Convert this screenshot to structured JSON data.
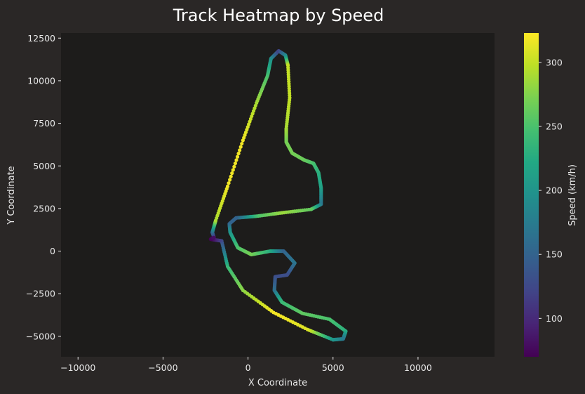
{
  "chart_data": {
    "type": "scatter",
    "title": "Track Heatmap by Speed",
    "xlabel": "X Coordinate",
    "ylabel": "Y Coordinate",
    "xlim": [
      -11000,
      14500
    ],
    "ylim": [
      -6200,
      12800
    ],
    "x_ticks": [
      -10000,
      -5000,
      0,
      5000,
      10000
    ],
    "x_tick_labels": [
      "−10000",
      "−5000",
      "0",
      "5000",
      "10000"
    ],
    "y_ticks": [
      -5000,
      -2500,
      0,
      2500,
      5000,
      7500,
      10000,
      12500
    ],
    "y_tick_labels": [
      "−5000",
      "−2500",
      "0",
      "2500",
      "5000",
      "7500",
      "10000",
      "12500"
    ],
    "grid": false,
    "colormap": "viridis",
    "colorbar": {
      "label": "Speed (km/h)",
      "range": [
        70,
        323
      ],
      "ticks": [
        100,
        150,
        200,
        250,
        300
      ],
      "tick_labels": [
        "100",
        "150",
        "200",
        "250",
        "300"
      ]
    },
    "colors": {
      "figure_bg": "#2a2726",
      "axes_bg": "#1d1c1b",
      "text": "#e8e8e8"
    },
    "track_points": [
      {
        "x": -2000,
        "y": 800,
        "speed": 80
      },
      {
        "x": -2100,
        "y": 1100,
        "speed": 150
      },
      {
        "x": -1900,
        "y": 1800,
        "speed": 290
      },
      {
        "x": -1200,
        "y": 3800,
        "speed": 318
      },
      {
        "x": -300,
        "y": 6500,
        "speed": 318
      },
      {
        "x": 500,
        "y": 8700,
        "speed": 290
      },
      {
        "x": 1150,
        "y": 10300,
        "speed": 250
      },
      {
        "x": 1350,
        "y": 11300,
        "speed": 200
      },
      {
        "x": 1800,
        "y": 11750,
        "speed": 120
      },
      {
        "x": 2200,
        "y": 11500,
        "speed": 180
      },
      {
        "x": 2350,
        "y": 10900,
        "speed": 300
      },
      {
        "x": 2450,
        "y": 9000,
        "speed": 300
      },
      {
        "x": 2250,
        "y": 7200,
        "speed": 290
      },
      {
        "x": 2250,
        "y": 6400,
        "speed": 270
      },
      {
        "x": 2600,
        "y": 5750,
        "speed": 270
      },
      {
        "x": 3300,
        "y": 5350,
        "speed": 265
      },
      {
        "x": 3850,
        "y": 5150,
        "speed": 250
      },
      {
        "x": 4150,
        "y": 4600,
        "speed": 230
      },
      {
        "x": 4300,
        "y": 3700,
        "speed": 215
      },
      {
        "x": 4300,
        "y": 2750,
        "speed": 170
      },
      {
        "x": 3700,
        "y": 2450,
        "speed": 260
      },
      {
        "x": 2000,
        "y": 2250,
        "speed": 285
      },
      {
        "x": 500,
        "y": 2050,
        "speed": 250
      },
      {
        "x": -700,
        "y": 1950,
        "speed": 150
      },
      {
        "x": -1100,
        "y": 1600,
        "speed": 150
      },
      {
        "x": -1050,
        "y": 1100,
        "speed": 200
      },
      {
        "x": -600,
        "y": 200,
        "speed": 250
      },
      {
        "x": 200,
        "y": -200,
        "speed": 270
      },
      {
        "x": 1300,
        "y": 0,
        "speed": 230
      },
      {
        "x": 2100,
        "y": 0,
        "speed": 150
      },
      {
        "x": 2750,
        "y": -700,
        "speed": 170
      },
      {
        "x": 2300,
        "y": -1400,
        "speed": 130
      },
      {
        "x": 1600,
        "y": -1500,
        "speed": 130
      },
      {
        "x": 1550,
        "y": -2300,
        "speed": 160
      },
      {
        "x": 2000,
        "y": -3000,
        "speed": 240
      },
      {
        "x": 3200,
        "y": -3650,
        "speed": 260
      },
      {
        "x": 4800,
        "y": -4000,
        "speed": 250
      },
      {
        "x": 5750,
        "y": -4700,
        "speed": 230
      },
      {
        "x": 5600,
        "y": -5150,
        "speed": 170
      },
      {
        "x": 5000,
        "y": -5200,
        "speed": 200
      },
      {
        "x": 3500,
        "y": -4600,
        "speed": 310
      },
      {
        "x": 1500,
        "y": -3600,
        "speed": 320
      },
      {
        "x": -300,
        "y": -2300,
        "speed": 280
      },
      {
        "x": -1200,
        "y": -900,
        "speed": 240
      },
      {
        "x": -1550,
        "y": 600,
        "speed": 130
      },
      {
        "x": -2200,
        "y": 700,
        "speed": 72
      },
      {
        "x": -2000,
        "y": 800,
        "speed": 80
      }
    ]
  }
}
